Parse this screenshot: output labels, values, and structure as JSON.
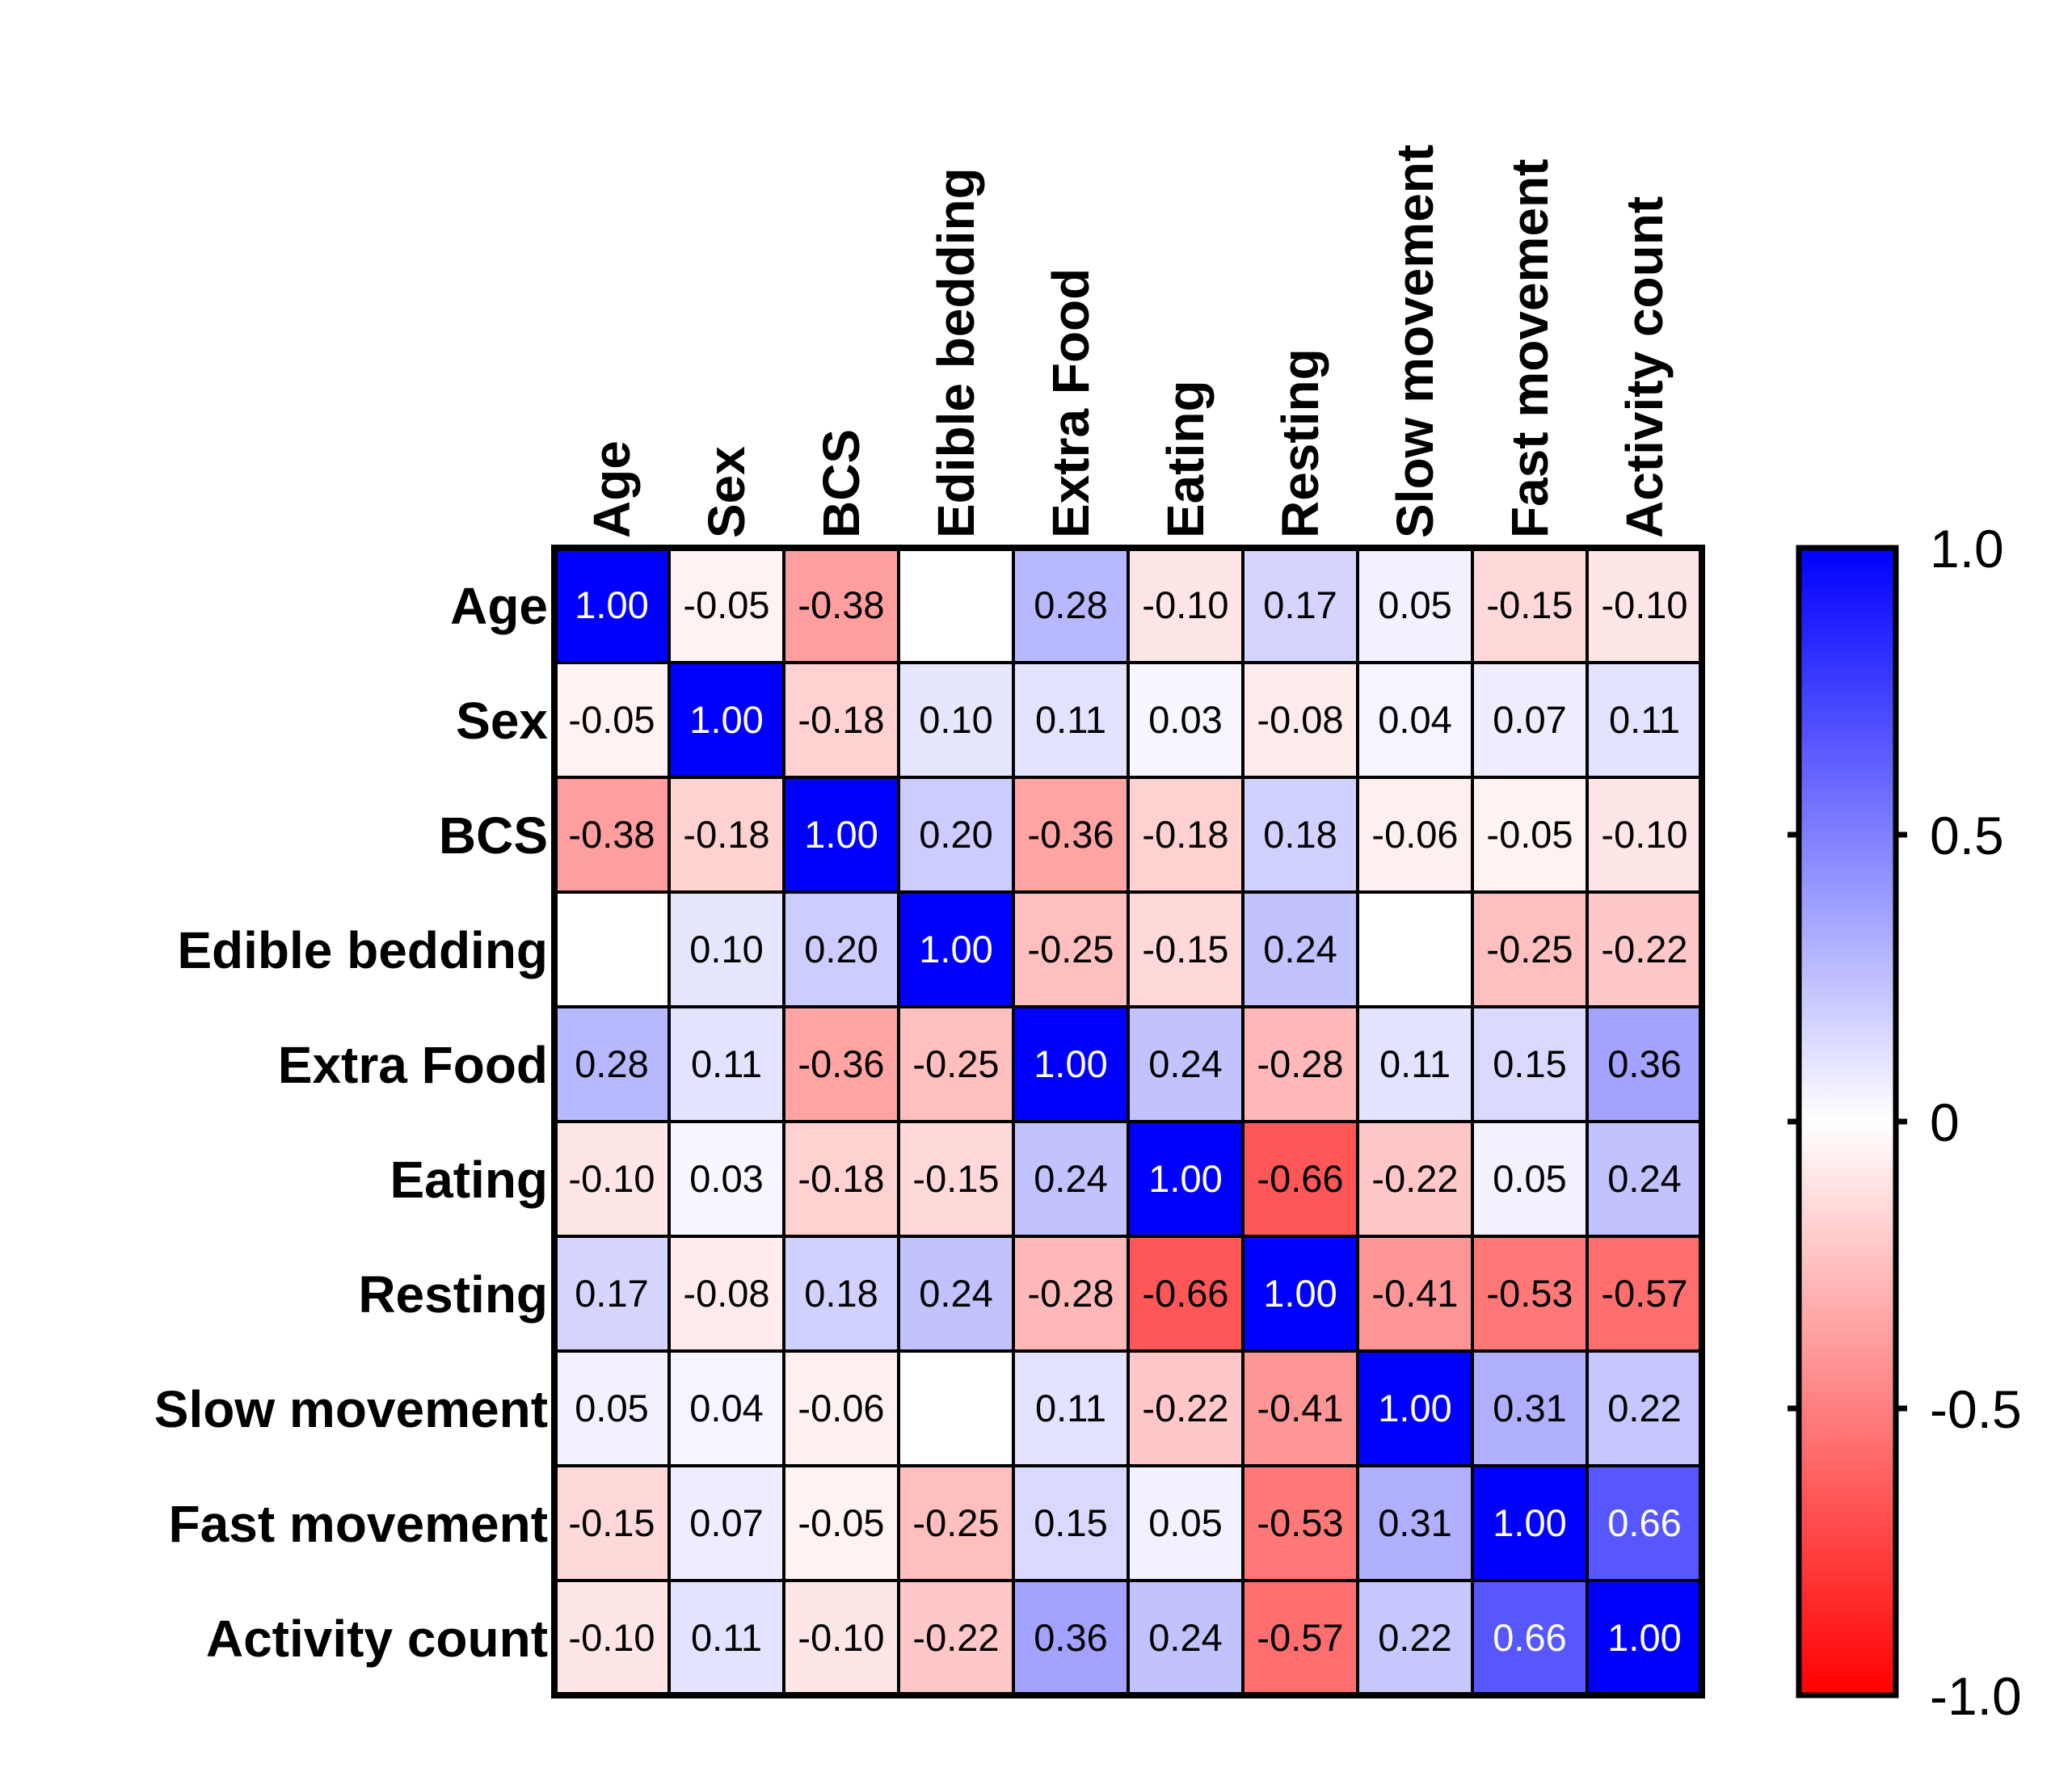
{
  "chart_data": {
    "type": "heatmap",
    "title": "",
    "labels": [
      "Age",
      "Sex",
      "BCS",
      "Edible bedding",
      "Extra Food",
      "Eating",
      "Resting",
      "Slow movement",
      "Fast movement",
      "Activity count"
    ],
    "matrix": [
      [
        1.0,
        -0.05,
        -0.38,
        null,
        0.28,
        -0.1,
        0.17,
        0.05,
        -0.15,
        -0.1
      ],
      [
        -0.05,
        1.0,
        -0.18,
        0.1,
        0.11,
        0.03,
        -0.08,
        0.04,
        0.07,
        0.11
      ],
      [
        -0.38,
        -0.18,
        1.0,
        0.2,
        -0.36,
        -0.18,
        0.18,
        -0.06,
        -0.05,
        -0.1
      ],
      [
        null,
        0.1,
        0.2,
        1.0,
        -0.25,
        -0.15,
        0.24,
        null,
        -0.25,
        -0.22
      ],
      [
        0.28,
        0.11,
        -0.36,
        -0.25,
        1.0,
        0.24,
        -0.28,
        0.11,
        0.15,
        0.36
      ],
      [
        -0.1,
        0.03,
        -0.18,
        -0.15,
        0.24,
        1.0,
        -0.66,
        -0.22,
        0.05,
        0.24
      ],
      [
        0.17,
        -0.08,
        0.18,
        0.24,
        -0.28,
        -0.66,
        1.0,
        -0.41,
        -0.53,
        -0.57
      ],
      [
        0.05,
        0.04,
        -0.06,
        null,
        0.11,
        -0.22,
        -0.41,
        1.0,
        0.31,
        0.22
      ],
      [
        -0.15,
        0.07,
        -0.05,
        -0.25,
        0.15,
        0.05,
        -0.53,
        0.31,
        1.0,
        0.66
      ],
      [
        -0.1,
        0.11,
        -0.1,
        -0.22,
        0.36,
        0.24,
        -0.57,
        0.22,
        0.66,
        1.0
      ]
    ],
    "value_range": [
      -1.0,
      1.0
    ],
    "colorbar": {
      "ticks": [
        1.0,
        0.5,
        0,
        -0.5,
        -1.0
      ],
      "tick_labels": [
        "1.0",
        "0.5",
        "0",
        "-0.5",
        "-1.0"
      ],
      "colors": {
        "max": "#0000ff",
        "mid": "#ffffff",
        "min": "#ff0000"
      }
    }
  }
}
